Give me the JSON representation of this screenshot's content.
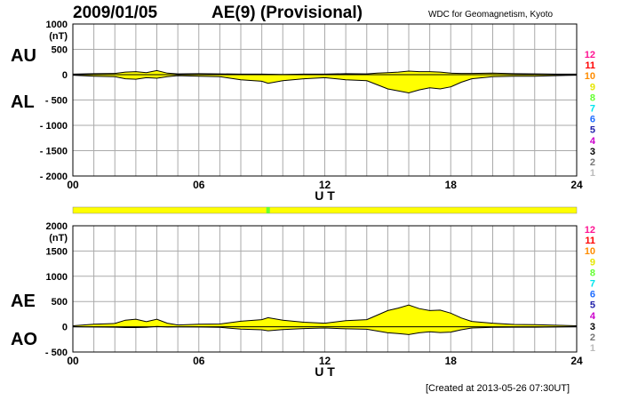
{
  "header": {
    "date": "2009/01/05",
    "index_title": "AE(9)  (Provisional)",
    "source": "WDC for Geomagnetism, Kyoto"
  },
  "footer": {
    "created": "[Created at 2013-05-26 07:30UT]"
  },
  "colors": {
    "fill": "#ffff00",
    "line": "#000000",
    "grid": "#aaaaaa",
    "quality_bar": "#ffff00",
    "quality_mark": "#66ff33"
  },
  "quality_scale": [
    {
      "label": "12",
      "color": "#ff1493"
    },
    {
      "label": "11",
      "color": "#ff0000"
    },
    {
      "label": "10",
      "color": "#ff8c00"
    },
    {
      "label": "9",
      "color": "#e6e600"
    },
    {
      "label": "8",
      "color": "#66ff33"
    },
    {
      "label": "7",
      "color": "#00e5ee"
    },
    {
      "label": "6",
      "color": "#1e6cff"
    },
    {
      "label": "5",
      "color": "#2222aa"
    },
    {
      "label": "4",
      "color": "#cc00cc"
    },
    {
      "label": "3",
      "color": "#000000"
    },
    {
      "label": "2",
      "color": "#777777"
    },
    {
      "label": "1",
      "color": "#bbbbbb"
    }
  ],
  "chart_data": [
    {
      "type": "area",
      "panel": "top",
      "xlabel": "U T",
      "ylabel": "(nT)",
      "ylim": [
        -2000,
        1000
      ],
      "xlim": [
        0,
        24
      ],
      "x_ticks": [
        "00",
        "06",
        "12",
        "18",
        "24"
      ],
      "y_ticks": [
        "1000",
        "500",
        "0",
        "- 500",
        "- 1000",
        "- 1500",
        "- 2000"
      ],
      "grid": true,
      "series": [
        {
          "name": "AU",
          "x": [
            0,
            1,
            2,
            2.5,
            3,
            3.5,
            4,
            4.5,
            5,
            6,
            7,
            8,
            9,
            10,
            11,
            12,
            13,
            14,
            14.5,
            15,
            15.5,
            16,
            16.5,
            17,
            17.5,
            18,
            18.5,
            19,
            20,
            21,
            22,
            23,
            24
          ],
          "values": [
            10,
            20,
            25,
            50,
            60,
            40,
            80,
            30,
            15,
            20,
            15,
            10,
            10,
            5,
            10,
            10,
            20,
            15,
            30,
            40,
            50,
            70,
            60,
            60,
            50,
            30,
            25,
            25,
            30,
            20,
            15,
            10,
            10
          ]
        },
        {
          "name": "AL",
          "x": [
            0,
            1,
            2,
            2.5,
            3,
            3.5,
            4,
            4.5,
            5,
            6,
            7,
            8,
            9,
            9.3,
            10,
            11,
            12,
            13,
            14,
            14.5,
            15,
            15.5,
            16,
            16.5,
            17,
            17.5,
            18,
            18.5,
            19,
            20,
            21,
            22,
            23,
            24
          ],
          "values": [
            -10,
            -30,
            -40,
            -80,
            -90,
            -60,
            -70,
            -40,
            -20,
            -30,
            -40,
            -100,
            -130,
            -170,
            -120,
            -80,
            -60,
            -100,
            -120,
            -200,
            -280,
            -320,
            -360,
            -300,
            -260,
            -280,
            -240,
            -150,
            -80,
            -40,
            -30,
            -30,
            -20,
            -10
          ]
        }
      ]
    },
    {
      "type": "area",
      "panel": "bottom",
      "xlabel": "U T",
      "ylabel": "(nT)",
      "ylim": [
        -500,
        2000
      ],
      "xlim": [
        0,
        24
      ],
      "x_ticks": [
        "00",
        "06",
        "12",
        "18",
        "24"
      ],
      "y_ticks": [
        "2000",
        "1500",
        "1000",
        "500",
        "0",
        "- 500"
      ],
      "grid": true,
      "series": [
        {
          "name": "AE",
          "x": [
            0,
            1,
            2,
            2.5,
            3,
            3.5,
            4,
            4.5,
            5,
            6,
            7,
            8,
            9,
            9.3,
            10,
            11,
            12,
            13,
            14,
            14.5,
            15,
            15.5,
            16,
            16.5,
            17,
            17.5,
            18,
            18.5,
            19,
            20,
            21,
            22,
            23,
            24
          ],
          "values": [
            20,
            50,
            65,
            130,
            150,
            100,
            150,
            70,
            35,
            50,
            55,
            110,
            140,
            180,
            130,
            90,
            70,
            120,
            140,
            230,
            320,
            370,
            430,
            360,
            320,
            330,
            270,
            175,
            105,
            70,
            45,
            40,
            30,
            20
          ]
        },
        {
          "name": "AO",
          "x": [
            0,
            1,
            2,
            2.5,
            3,
            3.5,
            4,
            4.5,
            5,
            6,
            7,
            8,
            9,
            9.3,
            10,
            11,
            12,
            13,
            14,
            14.5,
            15,
            15.5,
            16,
            16.5,
            17,
            17.5,
            18,
            18.5,
            19,
            20,
            21,
            22,
            23,
            24
          ],
          "values": [
            0,
            -5,
            -8,
            -15,
            -15,
            -10,
            5,
            -5,
            -3,
            -5,
            -12,
            -45,
            -60,
            -80,
            -55,
            -35,
            -25,
            -40,
            -50,
            -85,
            -120,
            -135,
            -155,
            -120,
            -100,
            -115,
            -105,
            -60,
            -25,
            -10,
            -8,
            -8,
            -5,
            0
          ]
        }
      ]
    }
  ],
  "quality_bar": {
    "mark_hours": [
      9.3
    ]
  }
}
